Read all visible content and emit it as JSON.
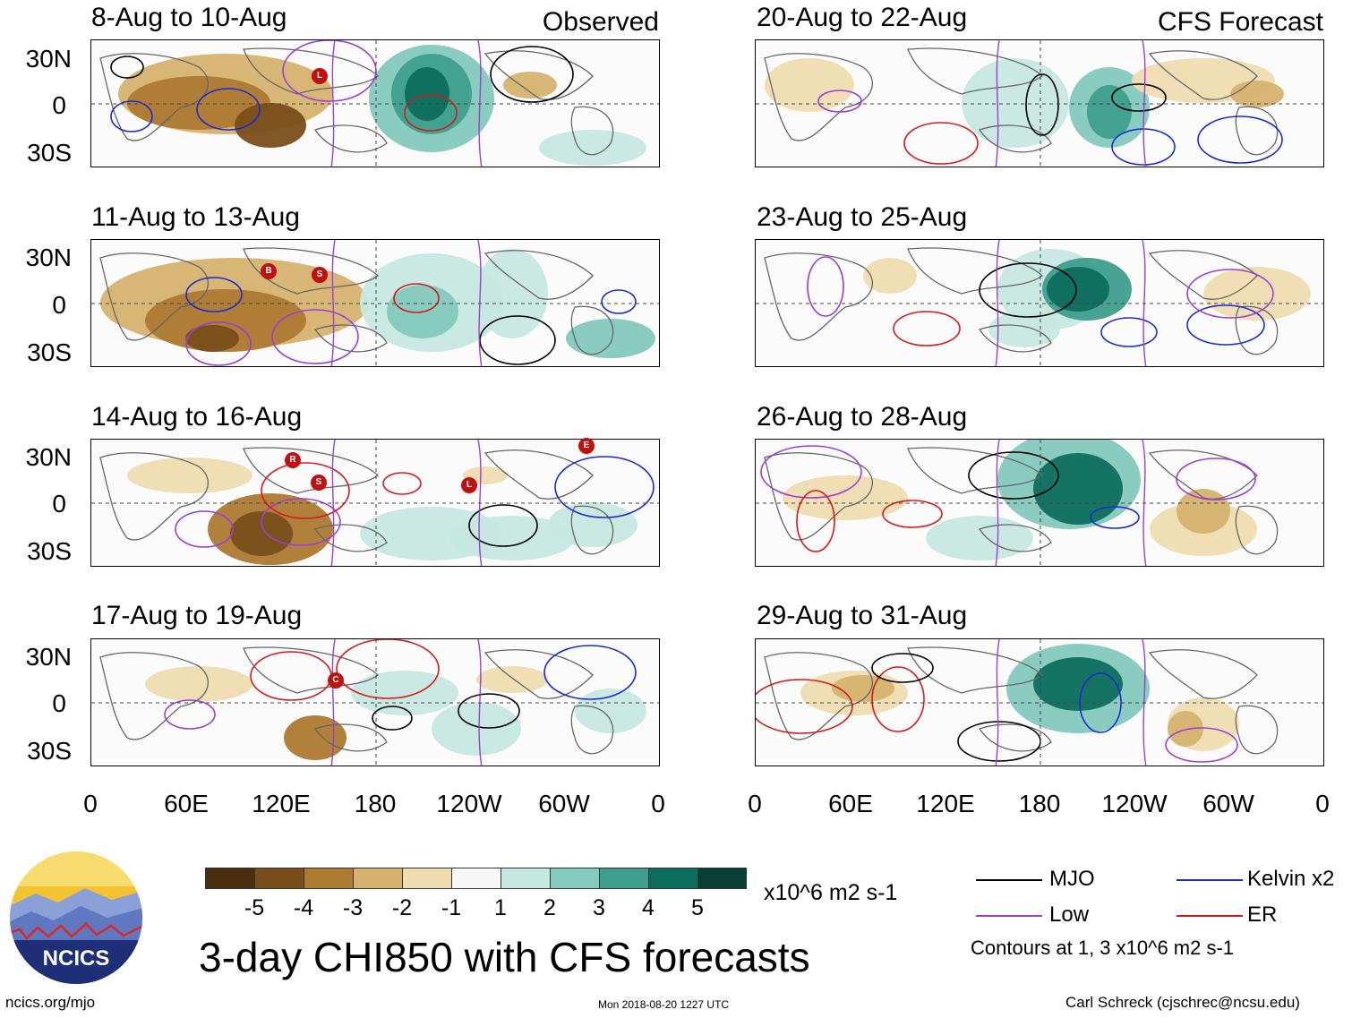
{
  "header": {
    "left_label": "Observed",
    "right_label": "CFS Forecast"
  },
  "panels_left": [
    {
      "title": "8-Aug to 10-Aug"
    },
    {
      "title": "11-Aug to 13-Aug"
    },
    {
      "title": "14-Aug to 16-Aug"
    },
    {
      "title": "17-Aug to 19-Aug"
    }
  ],
  "panels_right": [
    {
      "title": "20-Aug to 22-Aug"
    },
    {
      "title": "23-Aug to 25-Aug"
    },
    {
      "title": "26-Aug to 28-Aug"
    },
    {
      "title": "29-Aug to 31-Aug"
    }
  ],
  "lat_ticks": [
    "30N",
    "0",
    "30S"
  ],
  "lon_ticks": [
    "0",
    "60E",
    "120E",
    "180",
    "120W",
    "60W",
    "0"
  ],
  "colorbar": {
    "labels": [
      "-5",
      "-4",
      "-3",
      "-2",
      "-1",
      "1",
      "2",
      "3",
      "4",
      "5"
    ],
    "colors": [
      "#4a2e10",
      "#7a4e1a",
      "#ad7a32",
      "#d5b26f",
      "#efdcb0",
      "#f7f7f7",
      "#c6e8e0",
      "#84cabd",
      "#3f9e8c",
      "#0e6e5e",
      "#083f35"
    ],
    "units": "x10^6 m2 s-1"
  },
  "legend": {
    "items": [
      {
        "label": "MJO",
        "color": "#000000"
      },
      {
        "label": "Kelvin x2",
        "color": "#1a2ad6"
      },
      {
        "label": "Low",
        "color": "#9b3fd6"
      },
      {
        "label": "ER",
        "color": "#d61a1a"
      }
    ],
    "note": "Contours at 1, 3 x10^6 m2 s-1"
  },
  "main_title": "3-day CHI850 with CFS forecasts",
  "logo_text": "NCICS",
  "footer": {
    "url": "ncics.org/mjo",
    "timestamp": "Mon 2018-08-20 1227 UTC",
    "author": "Carl Schreck (cjschrec@ncsu.edu)"
  },
  "storm_markers": [
    {
      "panel": "left-1",
      "letter": "L"
    },
    {
      "panel": "left-2",
      "letter": "B"
    },
    {
      "panel": "left-2",
      "letter": "S"
    },
    {
      "panel": "left-3",
      "letter": "R"
    },
    {
      "panel": "left-3",
      "letter": "S"
    },
    {
      "panel": "left-3",
      "letter": "L"
    },
    {
      "panel": "left-3",
      "letter": "E"
    },
    {
      "panel": "left-4",
      "letter": "C"
    }
  ]
}
